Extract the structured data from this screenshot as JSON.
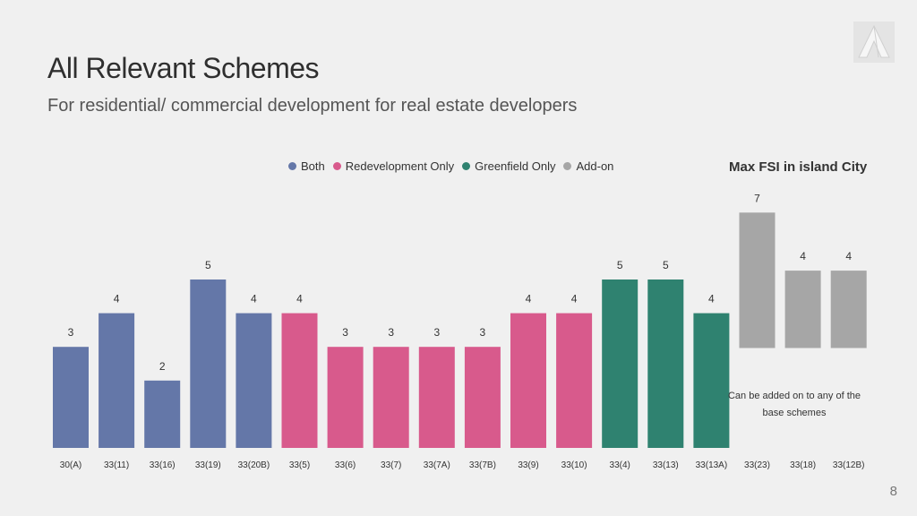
{
  "header": {
    "title": "All Relevant Schemes",
    "subtitle": "For residential/ commercial development for real estate developers"
  },
  "logo": {
    "icon": "triangle-a-logo-icon"
  },
  "legend": [
    {
      "label": "Both",
      "color": "#6477a8"
    },
    {
      "label": "Redevelopment Only",
      "color": "#d85a8c"
    },
    {
      "label": "Greenfield Only",
      "color": "#2f8270"
    },
    {
      "label": "Add-on",
      "color": "#a6a6a6"
    }
  ],
  "max_fsi_label": "Max FSI in island City",
  "addon_note": "Can be added on to any of the base schemes",
  "page_number": "8",
  "chart_data": {
    "type": "bar",
    "categories": [
      "30(A)",
      "33(11)",
      "33(16)",
      "33(19)",
      "33(20B)",
      "33(5)",
      "33(6)",
      "33(7)",
      "33(7A)",
      "33(7B)",
      "33(9)",
      "33(10)",
      "33(4)",
      "33(13)",
      "33(13A)",
      "33(23)",
      "33(18)",
      "33(12B)"
    ],
    "values": [
      3,
      4,
      2,
      5,
      4,
      4,
      3,
      3,
      3,
      3,
      4,
      4,
      5,
      5,
      4,
      7,
      4,
      4
    ],
    "groups": [
      "Both",
      "Both",
      "Both",
      "Both",
      "Both",
      "Redevelopment Only",
      "Redevelopment Only",
      "Redevelopment Only",
      "Redevelopment Only",
      "Redevelopment Only",
      "Redevelopment Only",
      "Redevelopment Only",
      "Greenfield Only",
      "Greenfield Only",
      "Greenfield Only",
      "Add-on",
      "Add-on",
      "Add-on"
    ],
    "data_labels": true,
    "ylim": [
      0,
      8
    ],
    "grid": false,
    "legend_position": "top"
  }
}
